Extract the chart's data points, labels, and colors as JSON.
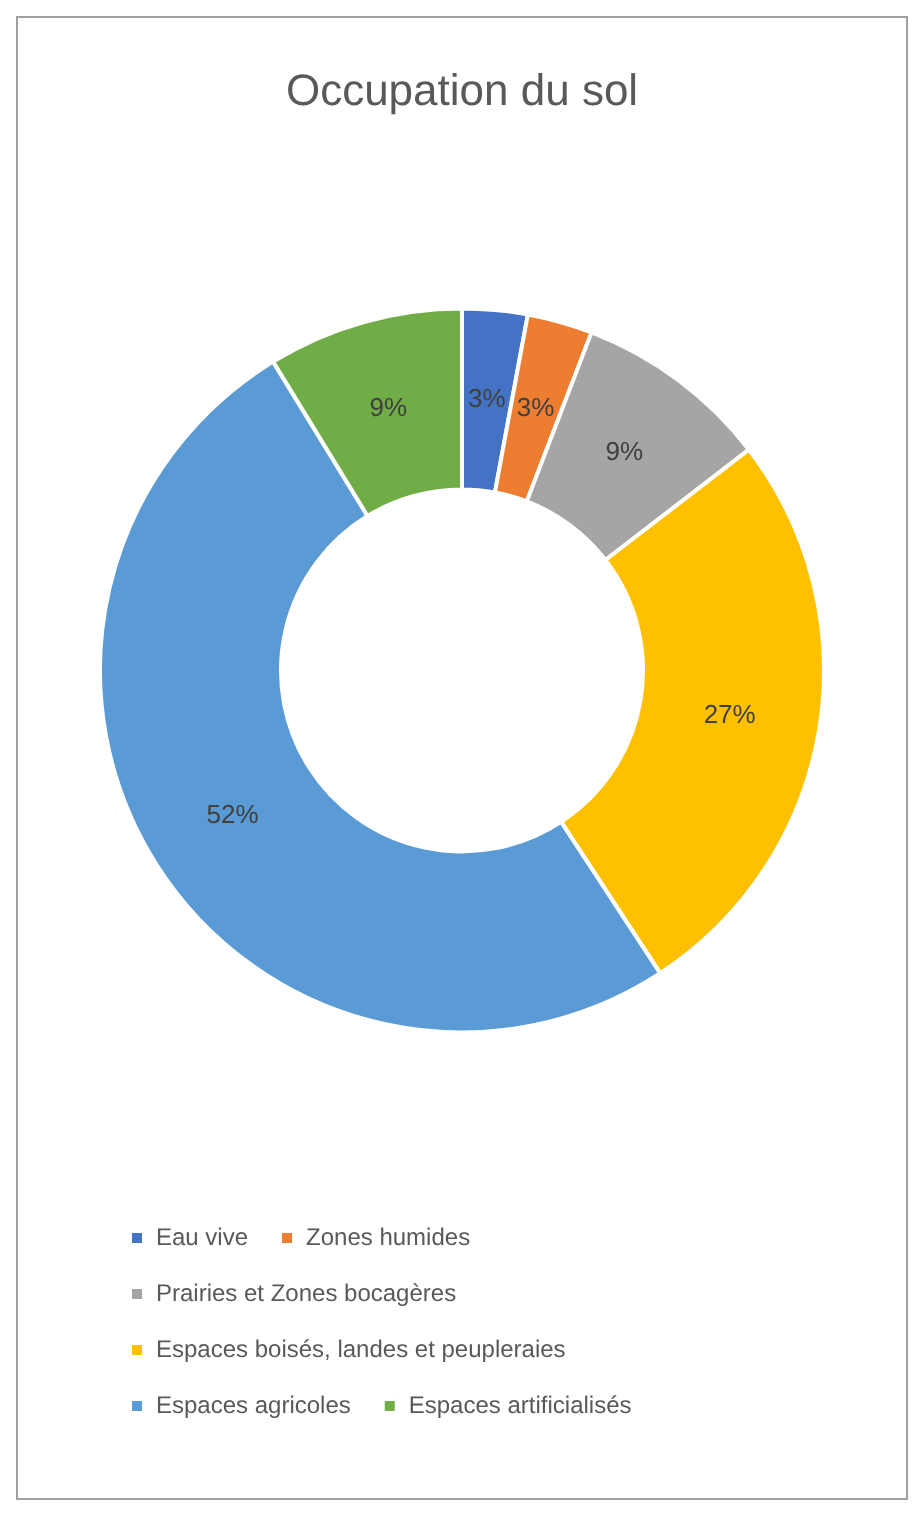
{
  "chart_data": {
    "type": "donut",
    "title": "Occupation du sol",
    "categories": [
      "Eau vive",
      "Zones humides",
      "Prairies et Zones bocagères",
      "Espaces boisés, landes et peupleraies",
      "Espaces agricoles",
      "Espaces artificialisés"
    ],
    "values": [
      3,
      3,
      9,
      27,
      52,
      9
    ],
    "colors": [
      "#4472c4",
      "#ed7d31",
      "#a5a5a5",
      "#ffc000",
      "#5b9bd5",
      "#70ad47"
    ],
    "value_labels": [
      "3%",
      "3%",
      "9%",
      "27%",
      "52%",
      "9%"
    ],
    "legend": "bottom"
  }
}
